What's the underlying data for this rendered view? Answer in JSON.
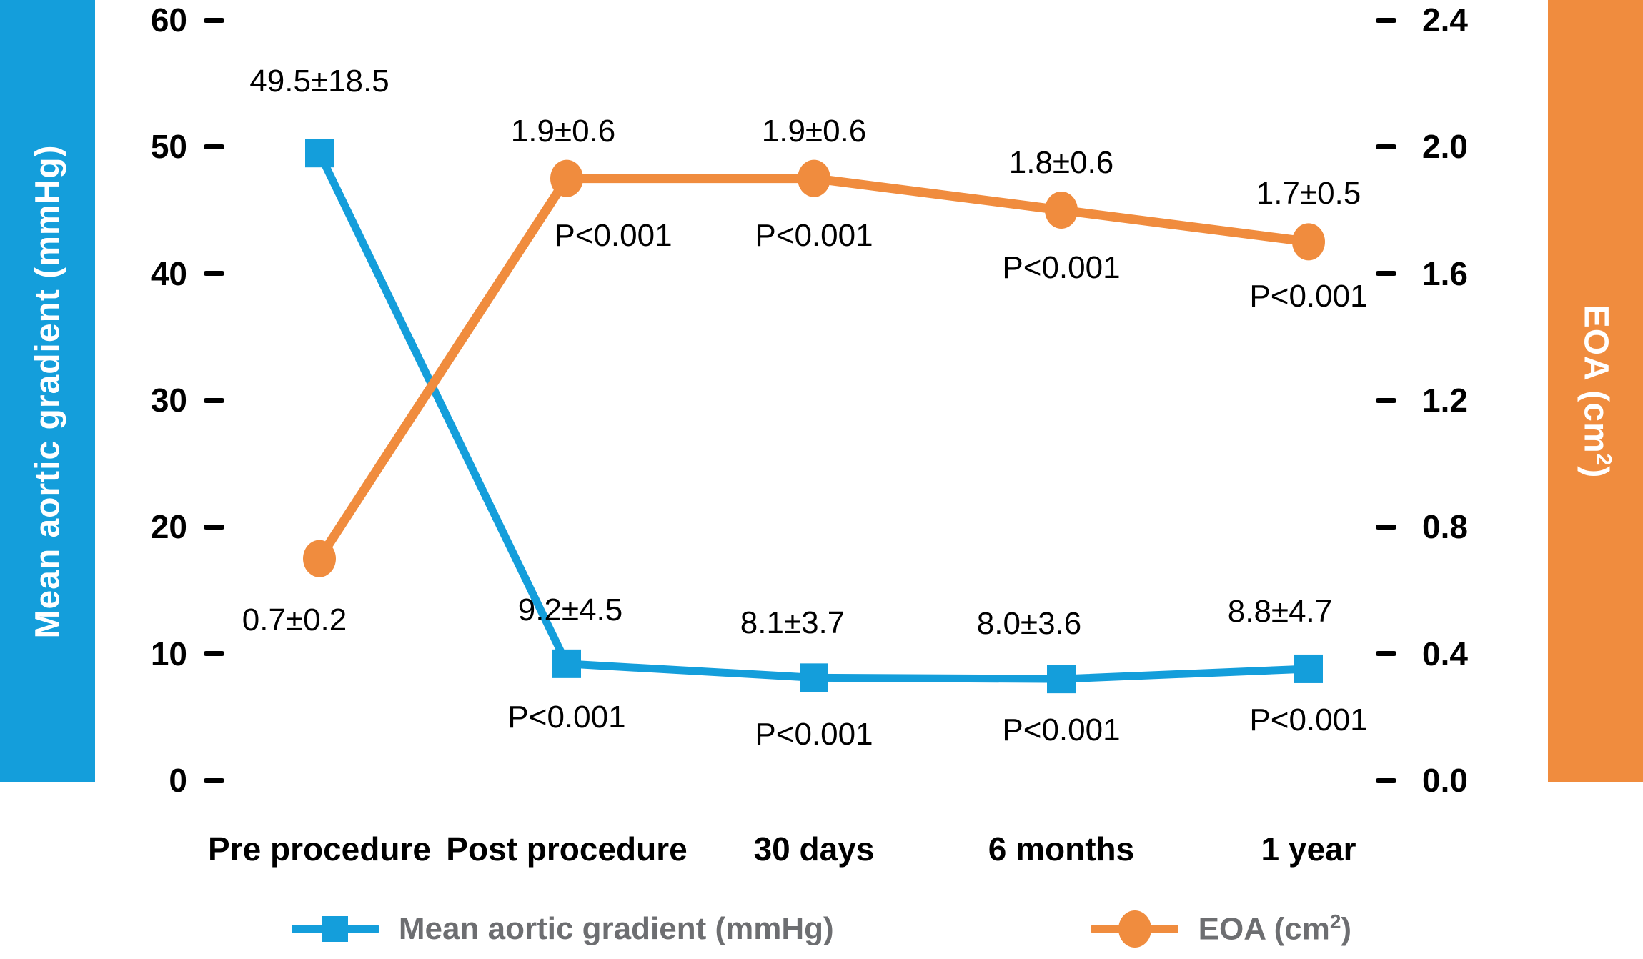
{
  "accent_colors": {
    "blue": "#149EDB",
    "orange": "#F08C3E",
    "legend_text_gray": "#6D6E71"
  },
  "left_axis": {
    "label": "Mean aortic gradient (mmHg)",
    "ticks": [
      "60",
      "50",
      "40",
      "30",
      "20",
      "10",
      "0"
    ],
    "min": 0,
    "max": 60
  },
  "right_axis": {
    "label_prefix": "EOA (cm",
    "label_sup": "2",
    "label_suffix": ")",
    "ticks": [
      "2.4",
      "2.0",
      "1.6",
      "1.2",
      "0.8",
      "0.4",
      "0.0"
    ],
    "min": 0,
    "max": 2.4
  },
  "chart_data": {
    "type": "line",
    "categories": [
      "Pre procedure",
      "Post procedure",
      "30 days",
      "6 months",
      "1 year"
    ],
    "grid": "off",
    "legend_position": "bottom",
    "series": [
      {
        "name": "Mean aortic gradient (mmHg)",
        "axis": "left",
        "marker": "square",
        "color": "#149EDB",
        "values": [
          49.5,
          9.2,
          8.1,
          8.0,
          8.8
        ],
        "point_labels": [
          "49.5±18.5",
          "9.2±4.5",
          "8.1±3.7",
          "8.0±3.6",
          "8.8±4.7"
        ],
        "p_values": [
          null,
          "P<0.001",
          "P<0.001",
          "P<0.001",
          "P<0.001"
        ]
      },
      {
        "name": "EOA (cm²)",
        "axis": "right",
        "marker": "circle",
        "color": "#F08C3E",
        "values": [
          0.7,
          1.9,
          1.9,
          1.8,
          1.7
        ],
        "point_labels": [
          "0.7±0.2",
          "1.9±0.6",
          "1.9±0.6",
          "1.8±0.6",
          "1.7±0.5"
        ],
        "p_values": [
          null,
          "P<0.001",
          "P<0.001",
          "P<0.001",
          "P<0.001"
        ]
      }
    ],
    "left_ylim": [
      0,
      60
    ],
    "right_ylim": [
      0,
      2.4
    ]
  },
  "legend": {
    "items": [
      {
        "label": "Mean aortic gradient (mmHg)",
        "marker": "square",
        "color": "#149EDB"
      },
      {
        "label_prefix": "EOA (cm",
        "label_sup": "2",
        "label_suffix": ")",
        "marker": "circle",
        "color": "#F08C3E"
      }
    ]
  }
}
